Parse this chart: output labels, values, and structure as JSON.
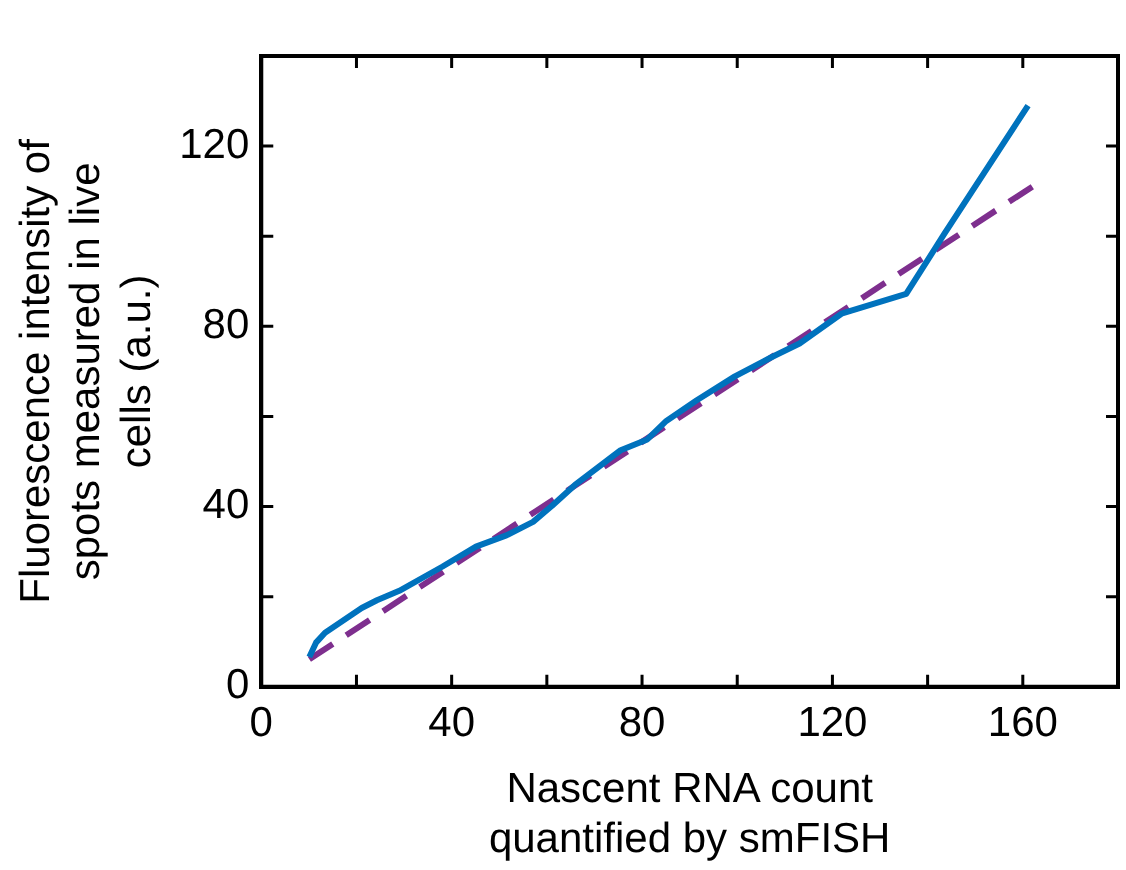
{
  "chart_data": {
    "type": "line",
    "xlabel": "Nascent RNA count\nquantified by smFISH",
    "ylabel": "Fluorescence intensity of\nspots measured in live\ncells (a.u.)",
    "xlim": [
      0,
      180
    ],
    "xticks": [
      0,
      {
        "value": 20,
        "label": null
      },
      40,
      {
        "value": 60,
        "label": null
      },
      80,
      {
        "value": 100,
        "label": null
      },
      120,
      {
        "value": 140,
        "label": null
      },
      160
    ],
    "ylim": [
      0,
      140
    ],
    "yticks": [
      0,
      {
        "value": 20,
        "label": null
      },
      40,
      {
        "value": 60,
        "label": null
      },
      80,
      {
        "value": 100,
        "label": null
      },
      120
    ],
    "grid": false,
    "legend": false,
    "marker": "none",
    "series": [
      {
        "color": "#0072bd",
        "line_style": "solid",
        "x": [
          10.1,
          11.5,
          13.4,
          21.1,
          24.3,
          29,
          38.1,
          45.1,
          51.5,
          57.1,
          61.1,
          65.9,
          75.5,
          81.1,
          85.1,
          91.5,
          99.5,
          107.5,
          113.1,
          121.9,
          135.5,
          143.5,
          161.1
        ],
        "values": [
          6.6,
          9.8,
          12,
          17.5,
          19.2,
          21.3,
          26.7,
          31.1,
          33.6,
          36.6,
          40.2,
          44.8,
          52.5,
          54.9,
          59,
          63.6,
          68.9,
          73.3,
          76.2,
          82.8,
          87.2,
          100.5,
          129
        ]
      },
      {
        "color": "#7e2f8e",
        "line_style": "dashed",
        "x": [
          10.1,
          162
        ],
        "values": [
          6.1,
          111
        ]
      }
    ]
  }
}
